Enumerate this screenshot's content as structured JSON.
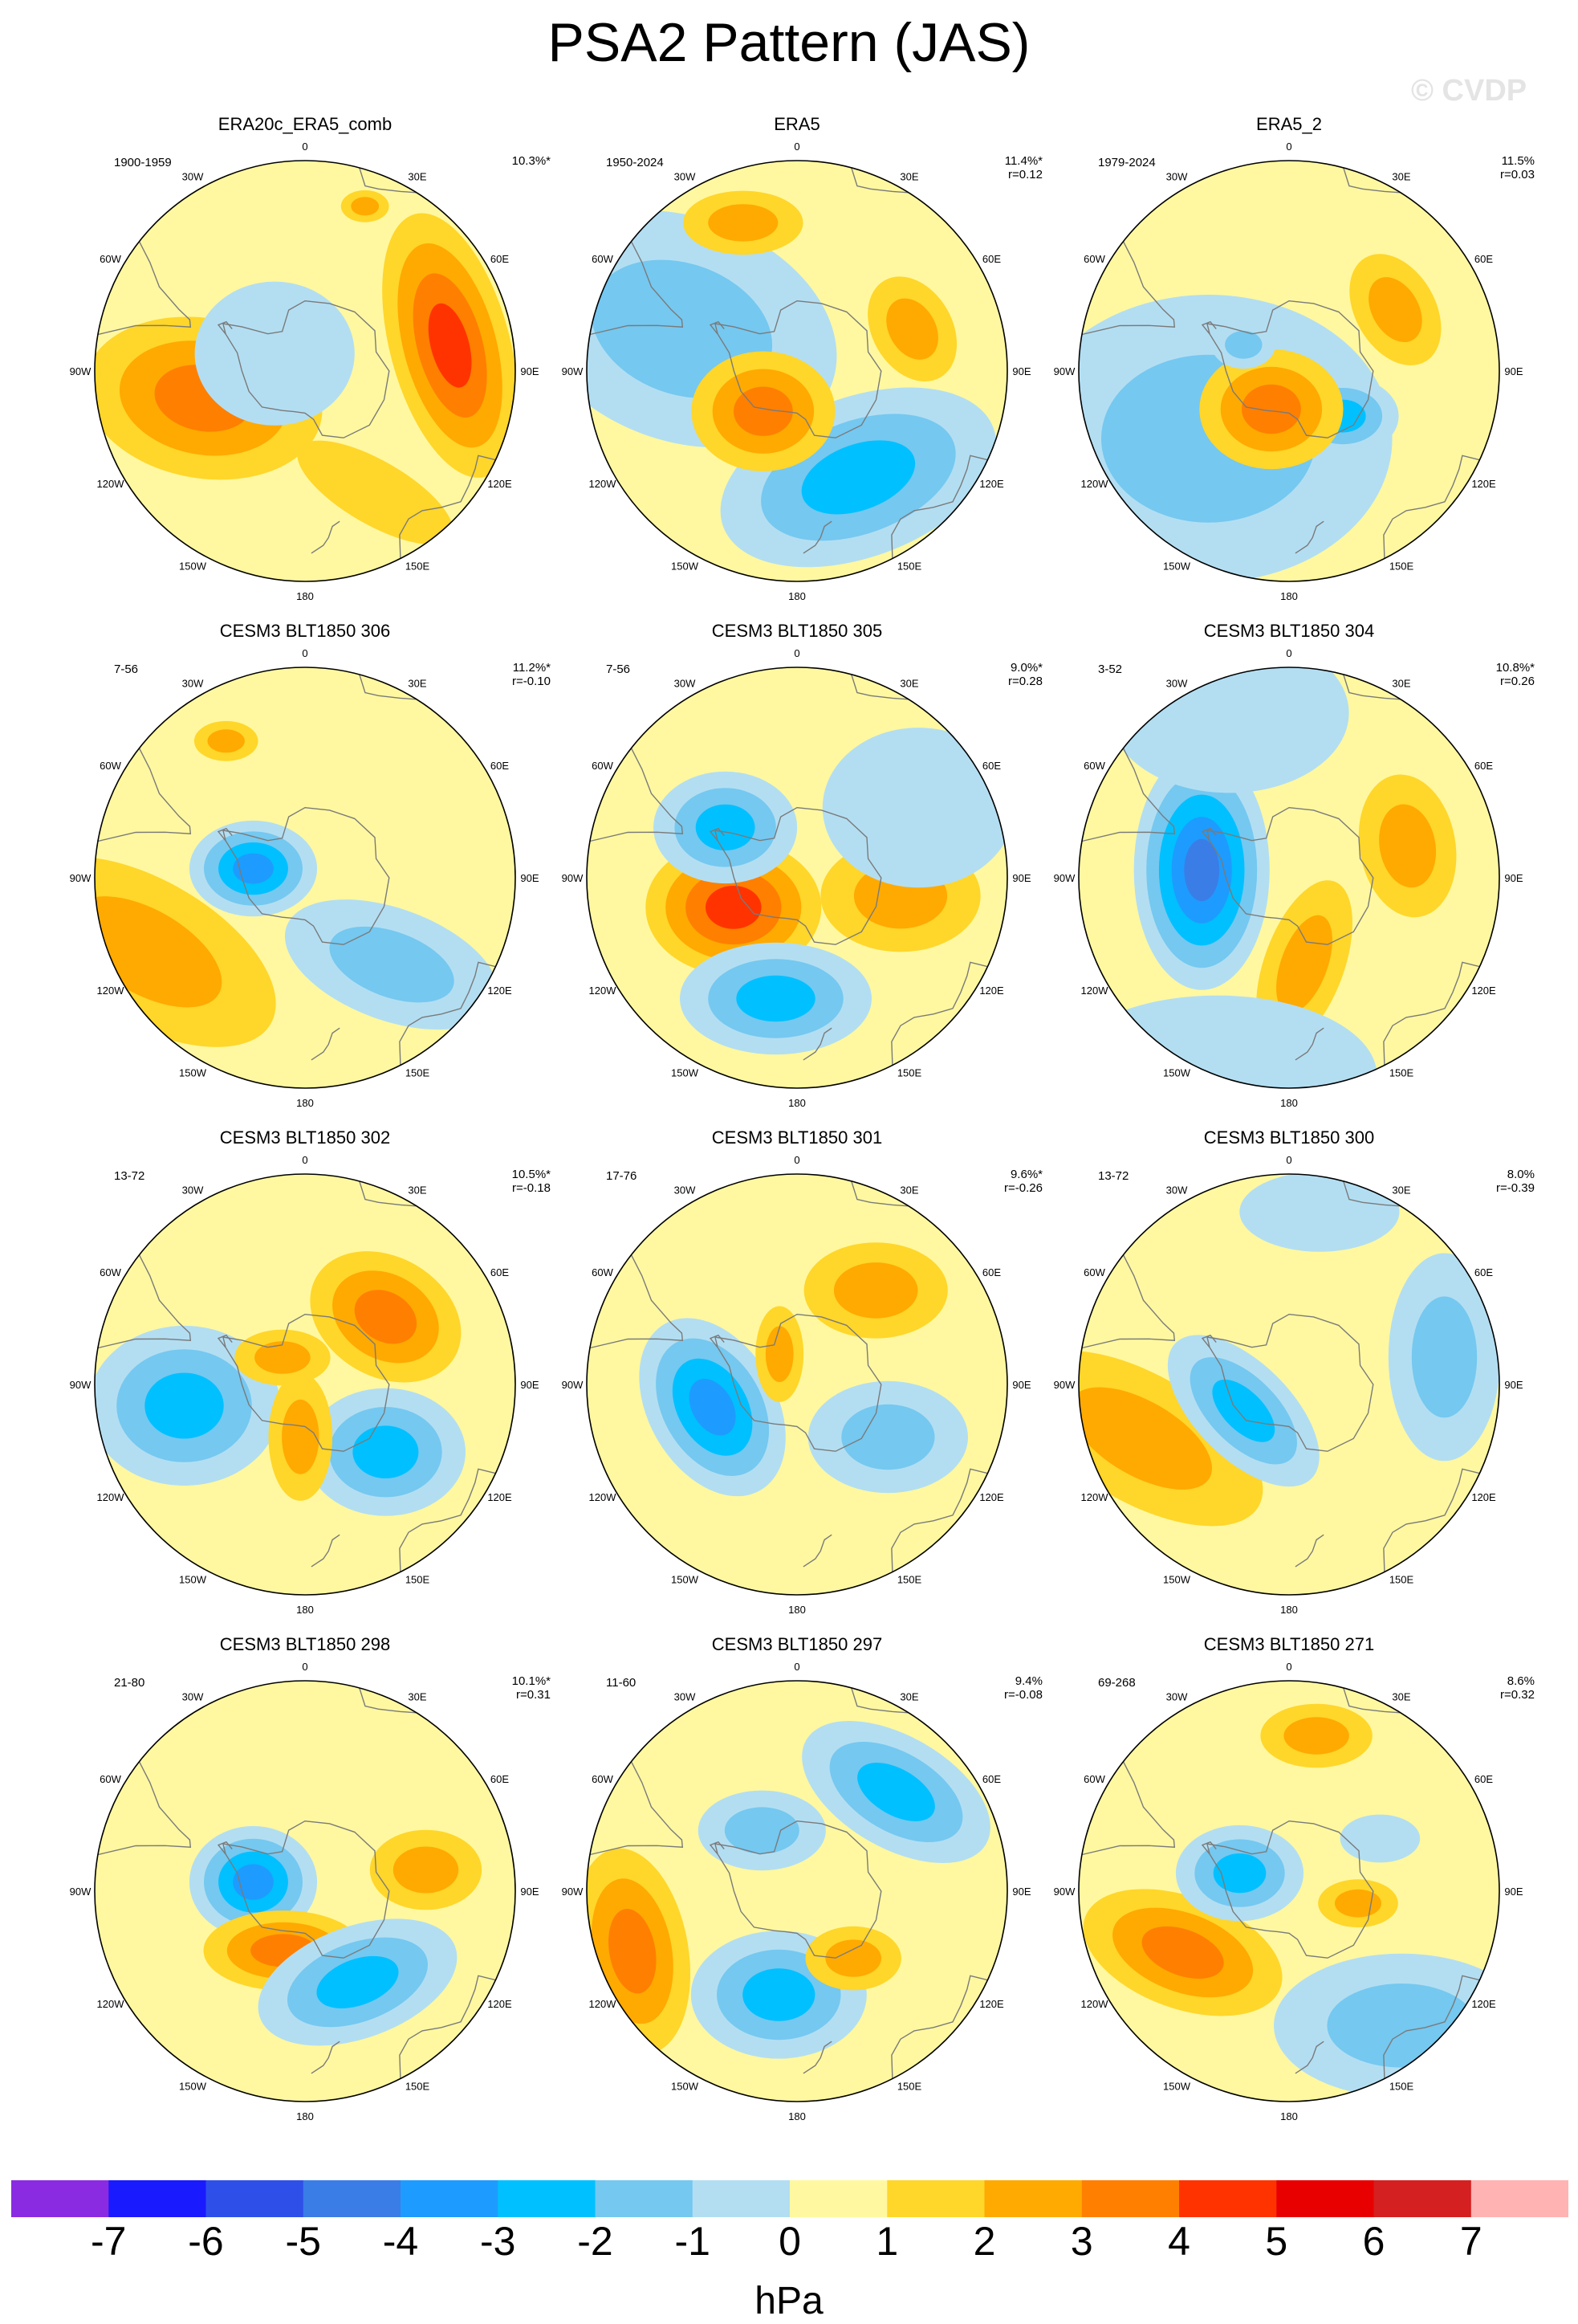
{
  "title": "PSA2 Pattern (JAS)",
  "watermark": "© CVDP",
  "units": "hPa",
  "grid_labels": {
    "lon": [
      "0",
      "30E",
      "60E",
      "90E",
      "120E",
      "150E",
      "180",
      "150W",
      "120W",
      "90W",
      "60W",
      "30W"
    ]
  },
  "colorbar": {
    "colors": [
      "#8a2be2",
      "#1a1aff",
      "#2f50e8",
      "#3a7de6",
      "#1e9bff",
      "#00c0ff",
      "#75c8f0",
      "#b3def2",
      "#fff8a0",
      "#ffd62a",
      "#ffaa00",
      "#ff7f00",
      "#ff3300",
      "#e80000",
      "#d42020",
      "#ffb3b3"
    ],
    "ticks": [
      "-7",
      "-6",
      "-5",
      "-4",
      "-3",
      "-2",
      "-1",
      "0",
      "1",
      "2",
      "3",
      "4",
      "5",
      "6",
      "7"
    ]
  },
  "panels": [
    {
      "title": "ERA20c_ERA5_comb",
      "years": "1900-1959",
      "pct": "10.3%*",
      "r": "",
      "blobs": [
        {
          "lon": 255,
          "lat": -60,
          "a": 0.3,
          "b": 0.2,
          "rot": 10,
          "lvl": 3
        },
        {
          "lon": 80,
          "lat": -48,
          "a": 0.34,
          "b": 0.15,
          "rot": 75,
          "lvl": 4
        },
        {
          "lon": 20,
          "lat": -40,
          "a": 0.06,
          "b": 0.04,
          "rot": 0,
          "lvl": 2
        },
        {
          "lon": 150,
          "lat": -50,
          "a": 0.22,
          "b": 0.08,
          "rot": 30,
          "lvl": 1
        },
        {
          "lon": 300,
          "lat": -80,
          "a": 0.2,
          "b": 0.18,
          "rot": 0,
          "lvl": -1
        }
      ]
    },
    {
      "title": "ERA5",
      "years": "1950-2024",
      "pct": "11.4%*",
      "r": "r=0.12",
      "blobs": [
        {
          "lon": 290,
          "lat": -55,
          "a": 0.4,
          "b": 0.28,
          "rot": 20,
          "lvl": -2
        },
        {
          "lon": 150,
          "lat": -55,
          "a": 0.36,
          "b": 0.2,
          "rot": -20,
          "lvl": -3
        },
        {
          "lon": 220,
          "lat": -75,
          "a": 0.18,
          "b": 0.15,
          "rot": 0,
          "lvl": 3
        },
        {
          "lon": 340,
          "lat": -45,
          "a": 0.15,
          "b": 0.08,
          "rot": 0,
          "lvl": 2
        },
        {
          "lon": 70,
          "lat": -55,
          "a": 0.14,
          "b": 0.1,
          "rot": 60,
          "lvl": 2
        }
      ]
    },
    {
      "title": "ERA5_2",
      "years": "1979-2024",
      "pct": "11.5%",
      "r": "r=0.03",
      "blobs": [
        {
          "lon": 230,
          "lat": -60,
          "a": 0.46,
          "b": 0.36,
          "rot": 0,
          "lvl": -2
        },
        {
          "lon": 130,
          "lat": -70,
          "a": 0.14,
          "b": 0.1,
          "rot": 0,
          "lvl": -3
        },
        {
          "lon": 205,
          "lat": -78,
          "a": 0.18,
          "b": 0.15,
          "rot": 0,
          "lvl": 3
        },
        {
          "lon": 60,
          "lat": -55,
          "a": 0.15,
          "b": 0.1,
          "rot": 60,
          "lvl": 2
        },
        {
          "lon": 300,
          "lat": -75,
          "a": 0.08,
          "b": 0.06,
          "rot": 0,
          "lvl": -2
        }
      ]
    },
    {
      "title": "CESM3 BLT1850 306",
      "years": "7-56",
      "pct": "11.2%*",
      "r": "r=-0.10",
      "blobs": [
        {
          "lon": 280,
          "lat": -75,
          "a": 0.16,
          "b": 0.12,
          "rot": 0,
          "lvl": -4
        },
        {
          "lon": 245,
          "lat": -40,
          "a": 0.36,
          "b": 0.18,
          "rot": 30,
          "lvl": 2
        },
        {
          "lon": 135,
          "lat": -55,
          "a": 0.28,
          "b": 0.14,
          "rot": 20,
          "lvl": -2
        },
        {
          "lon": 330,
          "lat": -45,
          "a": 0.08,
          "b": 0.05,
          "rot": 0,
          "lvl": 2
        }
      ]
    },
    {
      "title": "CESM3 BLT1850 305",
      "years": "7-56",
      "pct": "9.0%*",
      "r": "r=0.28",
      "blobs": [
        {
          "lon": 245,
          "lat": -70,
          "a": 0.22,
          "b": 0.17,
          "rot": 0,
          "lvl": 4
        },
        {
          "lon": 305,
          "lat": -65,
          "a": 0.18,
          "b": 0.14,
          "rot": 0,
          "lvl": -3
        },
        {
          "lon": 190,
          "lat": -55,
          "a": 0.24,
          "b": 0.14,
          "rot": 0,
          "lvl": -3
        },
        {
          "lon": 100,
          "lat": -60,
          "a": 0.2,
          "b": 0.14,
          "rot": 0,
          "lvl": 2
        },
        {
          "lon": 60,
          "lat": -50,
          "a": 0.24,
          "b": 0.2,
          "rot": 0,
          "lvl": -1
        }
      ]
    },
    {
      "title": "CESM3 BLT1850 304",
      "years": "3-52",
      "pct": "10.8%*",
      "r": "r=0.26",
      "blobs": [
        {
          "lon": 275,
          "lat": -65,
          "a": 0.3,
          "b": 0.17,
          "rot": 90,
          "lvl": -5
        },
        {
          "lon": 75,
          "lat": -55,
          "a": 0.18,
          "b": 0.12,
          "rot": 80,
          "lvl": 2
        },
        {
          "lon": 170,
          "lat": -65,
          "a": 0.22,
          "b": 0.1,
          "rot": -70,
          "lvl": 2
        },
        {
          "lon": 200,
          "lat": -30,
          "a": 0.4,
          "b": 0.2,
          "rot": 0,
          "lvl": -1
        },
        {
          "lon": 340,
          "lat": -40,
          "a": 0.3,
          "b": 0.2,
          "rot": 0,
          "lvl": -1
        }
      ]
    },
    {
      "title": "CESM3 BLT1850 302",
      "years": "13-72",
      "pct": "10.5%*",
      "r": "r=-0.18",
      "blobs": [
        {
          "lon": 50,
          "lat": -60,
          "a": 0.2,
          "b": 0.15,
          "rot": 30,
          "lvl": 3
        },
        {
          "lon": 260,
          "lat": -55,
          "a": 0.24,
          "b": 0.2,
          "rot": 0,
          "lvl": -3
        },
        {
          "lon": 130,
          "lat": -60,
          "a": 0.2,
          "b": 0.16,
          "rot": 0,
          "lvl": -3
        },
        {
          "lon": 185,
          "lat": -75,
          "a": 0.16,
          "b": 0.08,
          "rot": 90,
          "lvl": 2
        },
        {
          "lon": 320,
          "lat": -80,
          "a": 0.12,
          "b": 0.07,
          "rot": 0,
          "lvl": 2
        }
      ]
    },
    {
      "title": "CESM3 BLT1850 301",
      "years": "17-76",
      "pct": "9.6%*",
      "r": "r=-0.26",
      "blobs": [
        {
          "lon": 255,
          "lat": -65,
          "a": 0.24,
          "b": 0.16,
          "rot": 60,
          "lvl": -4
        },
        {
          "lon": 40,
          "lat": -55,
          "a": 0.18,
          "b": 0.12,
          "rot": 0,
          "lvl": 2
        },
        {
          "lon": 120,
          "lat": -60,
          "a": 0.2,
          "b": 0.14,
          "rot": 0,
          "lvl": -2
        },
        {
          "lon": 330,
          "lat": -80,
          "a": 0.12,
          "b": 0.06,
          "rot": 90,
          "lvl": 2
        }
      ]
    },
    {
      "title": "CESM3 BLT1850 300",
      "years": "13-72",
      "pct": "8.0%",
      "r": "r=-0.39",
      "blobs": [
        {
          "lon": 250,
          "lat": -45,
          "a": 0.34,
          "b": 0.16,
          "rot": 30,
          "lvl": 2
        },
        {
          "lon": 240,
          "lat": -75,
          "a": 0.24,
          "b": 0.12,
          "rot": 45,
          "lvl": -3
        },
        {
          "lon": 80,
          "lat": -45,
          "a": 0.26,
          "b": 0.14,
          "rot": 90,
          "lvl": -2
        },
        {
          "lon": 10,
          "lat": -40,
          "a": 0.2,
          "b": 0.1,
          "rot": 0,
          "lvl": -1
        }
      ]
    },
    {
      "title": "CESM3 BLT1850 298",
      "years": "21-80",
      "pct": "10.1%*",
      "r": "r=0.31",
      "blobs": [
        {
          "lon": 280,
          "lat": -75,
          "a": 0.16,
          "b": 0.14,
          "rot": 0,
          "lvl": -4
        },
        {
          "lon": 200,
          "lat": -72,
          "a": 0.2,
          "b": 0.1,
          "rot": 0,
          "lvl": 3
        },
        {
          "lon": 150,
          "lat": -60,
          "a": 0.26,
          "b": 0.14,
          "rot": -20,
          "lvl": -3
        },
        {
          "lon": 80,
          "lat": -55,
          "a": 0.14,
          "b": 0.1,
          "rot": 0,
          "lvl": 2
        }
      ]
    },
    {
      "title": "CESM3 BLT1850 297",
      "years": "11-60",
      "pct": "9.4%",
      "r": "r=-0.08",
      "blobs": [
        {
          "lon": 45,
          "lat": -50,
          "a": 0.26,
          "b": 0.14,
          "rot": 30,
          "lvl": -3
        },
        {
          "lon": 250,
          "lat": -40,
          "a": 0.26,
          "b": 0.14,
          "rot": 80,
          "lvl": 3
        },
        {
          "lon": 190,
          "lat": -60,
          "a": 0.22,
          "b": 0.16,
          "rot": 0,
          "lvl": -3
        },
        {
          "lon": 330,
          "lat": -70,
          "a": 0.16,
          "b": 0.1,
          "rot": 0,
          "lvl": -2
        },
        {
          "lon": 140,
          "lat": -65,
          "a": 0.12,
          "b": 0.08,
          "rot": 0,
          "lvl": 2
        }
      ]
    },
    {
      "title": "CESM3 BLT1850 271",
      "years": "69-268",
      "pct": "8.6%",
      "r": "r=0.32",
      "blobs": [
        {
          "lon": 240,
          "lat": -55,
          "a": 0.26,
          "b": 0.14,
          "rot": 20,
          "lvl": 3
        },
        {
          "lon": 290,
          "lat": -75,
          "a": 0.16,
          "b": 0.12,
          "rot": 0,
          "lvl": -3
        },
        {
          "lon": 140,
          "lat": -40,
          "a": 0.32,
          "b": 0.18,
          "rot": 0,
          "lvl": -2
        },
        {
          "lon": 10,
          "lat": -45,
          "a": 0.14,
          "b": 0.08,
          "rot": 0,
          "lvl": 2
        },
        {
          "lon": 60,
          "lat": -60,
          "a": 0.1,
          "b": 0.06,
          "rot": 0,
          "lvl": -1
        },
        {
          "lon": 100,
          "lat": -70,
          "a": 0.1,
          "b": 0.06,
          "rot": 0,
          "lvl": 2
        }
      ]
    }
  ]
}
